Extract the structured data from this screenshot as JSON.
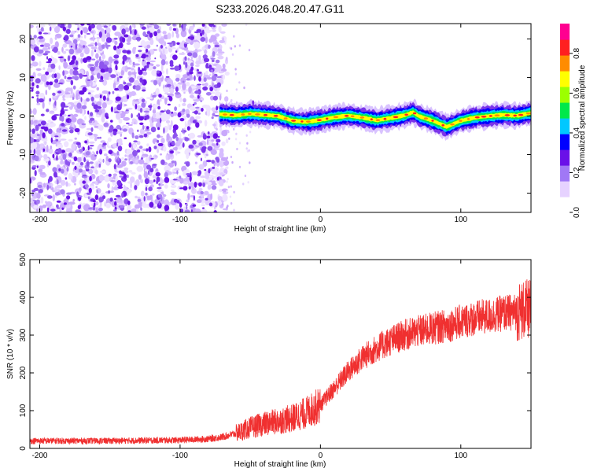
{
  "title": "S233.2026.048.20.47.G11",
  "chart_data": [
    {
      "type": "heatmap",
      "title": "S233.2026.048.20.47.G11",
      "xlabel": "Height of straight line (km)",
      "ylabel": "Frequency (Hz)",
      "xlim": [
        -207,
        150
      ],
      "ylim": [
        -25,
        24
      ],
      "xticks": [
        {
          "value": -200,
          "label": "-200"
        },
        {
          "value": -100,
          "label": "-100"
        },
        {
          "value": 0,
          "label": "0"
        },
        {
          "value": 100,
          "label": "100"
        }
      ],
      "yticks": [
        {
          "value": 20,
          "label": "20"
        },
        {
          "value": 10,
          "label": "10"
        },
        {
          "value": 0,
          "label": "0"
        },
        {
          "value": -10,
          "label": "-10"
        },
        {
          "value": -20,
          "label": "-20"
        }
      ],
      "noise_region_x": [
        -207,
        -72
      ],
      "trace": {
        "x": [
          -72,
          -60,
          -50,
          -40,
          -30,
          -20,
          -10,
          0,
          10,
          20,
          30,
          40,
          50,
          60,
          66,
          70,
          80,
          85,
          90,
          100,
          110,
          120,
          130,
          140,
          150
        ],
        "y": [
          0.5,
          0.2,
          0.6,
          0.3,
          0.0,
          -1.2,
          -1.5,
          -1.0,
          -0.3,
          0.1,
          -0.4,
          -1.1,
          -0.5,
          0.2,
          1.0,
          0.0,
          -1.2,
          -2.0,
          -2.8,
          -1.2,
          -0.4,
          0.0,
          0.3,
          0.1,
          0.8
        ]
      }
    },
    {
      "type": "line",
      "xlabel": "Height of straight line (km)",
      "ylabel": "SNR (10 * v/v)",
      "xlim": [
        -207,
        150
      ],
      "ylim": [
        0,
        500
      ],
      "xticks": [
        {
          "value": -200,
          "label": "-200"
        },
        {
          "value": -100,
          "label": "-100"
        },
        {
          "value": 0,
          "label": "0"
        },
        {
          "value": 100,
          "label": "100"
        }
      ],
      "yticks": [
        {
          "value": 0,
          "label": "0"
        },
        {
          "value": 100,
          "label": "100"
        },
        {
          "value": 200,
          "label": "200"
        },
        {
          "value": 300,
          "label": "300"
        },
        {
          "value": 400,
          "label": "400"
        },
        {
          "value": 500,
          "label": "500"
        }
      ],
      "series": [
        {
          "name": "SNR",
          "color": "#f03030",
          "x": [
            -207,
            -150,
            -100,
            -80,
            -70,
            -60,
            -50,
            -40,
            -30,
            -20,
            -10,
            0,
            10,
            20,
            30,
            40,
            50,
            60,
            70,
            80,
            90,
            100,
            110,
            120,
            130,
            140,
            150
          ],
          "mean": [
            20,
            20,
            22,
            25,
            30,
            40,
            55,
            65,
            72,
            80,
            95,
            115,
            160,
            205,
            240,
            265,
            285,
            300,
            310,
            318,
            325,
            335,
            345,
            350,
            358,
            362,
            370
          ]
        }
      ]
    }
  ],
  "colorbar": {
    "label": "Normalized spectral amplitude",
    "range": [
      0,
      0.95
    ],
    "ticks": [
      {
        "value": 0.0,
        "label": "0.0"
      },
      {
        "value": 0.2,
        "label": "0.2"
      },
      {
        "value": 0.4,
        "label": "0.4"
      },
      {
        "value": 0.6,
        "label": "0.6"
      },
      {
        "value": 0.8,
        "label": "0.8"
      }
    ],
    "colors": [
      "#ffffff",
      "#e6d2ff",
      "#a078f5",
      "#6a10e8",
      "#0000ff",
      "#00c8ff",
      "#00e84a",
      "#9cff00",
      "#ffff00",
      "#ff8c00",
      "#ff2020",
      "#ff0090"
    ]
  }
}
